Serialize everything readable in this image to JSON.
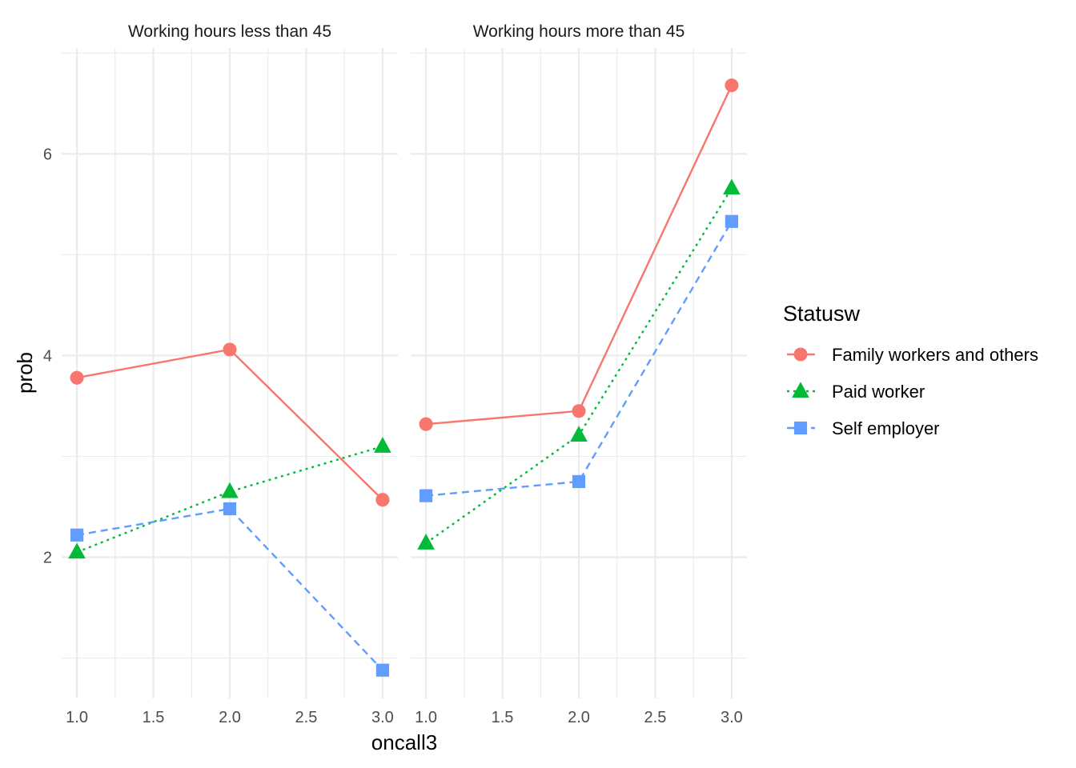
{
  "chart_data": {
    "type": "line",
    "facets": [
      "Working hours less than 45",
      "Working hours more than 45"
    ],
    "xlabel": "oncall3",
    "ylabel": "prob",
    "x_ticks": [
      "1.0",
      "1.5",
      "2.0",
      "2.5",
      "3.0"
    ],
    "y_ticks": [
      "2",
      "4",
      "6"
    ],
    "x": [
      1.0,
      2.0,
      3.0
    ],
    "xlim": [
      0.9,
      3.1
    ],
    "ylim": [
      0.6,
      7.05
    ],
    "grid": true,
    "legend": {
      "title": "Statusw",
      "position": "right"
    },
    "series": [
      {
        "name": "Family workers and others",
        "color": "#F8766D",
        "shape": "circle",
        "linetype": "solid",
        "panels": [
          {
            "facet": "Working hours less than 45",
            "values": [
              3.78,
              4.06,
              2.57
            ]
          },
          {
            "facet": "Working hours more than 45",
            "values": [
              3.32,
              3.45,
              6.68
            ]
          }
        ]
      },
      {
        "name": "Paid worker",
        "color": "#00BA38",
        "shape": "triangle",
        "linetype": "dotted",
        "panels": [
          {
            "facet": "Working hours less than 45",
            "values": [
              2.05,
              2.65,
              3.1
            ]
          },
          {
            "facet": "Working hours more than 45",
            "values": [
              2.14,
              3.21,
              5.66
            ]
          }
        ]
      },
      {
        "name": "Self employer",
        "color": "#619CFF",
        "shape": "square",
        "linetype": "dashed",
        "panels": [
          {
            "facet": "Working hours less than 45",
            "values": [
              2.22,
              2.48,
              0.88
            ]
          },
          {
            "facet": "Working hours more than 45",
            "values": [
              2.61,
              2.75,
              5.33
            ]
          }
        ]
      }
    ]
  }
}
